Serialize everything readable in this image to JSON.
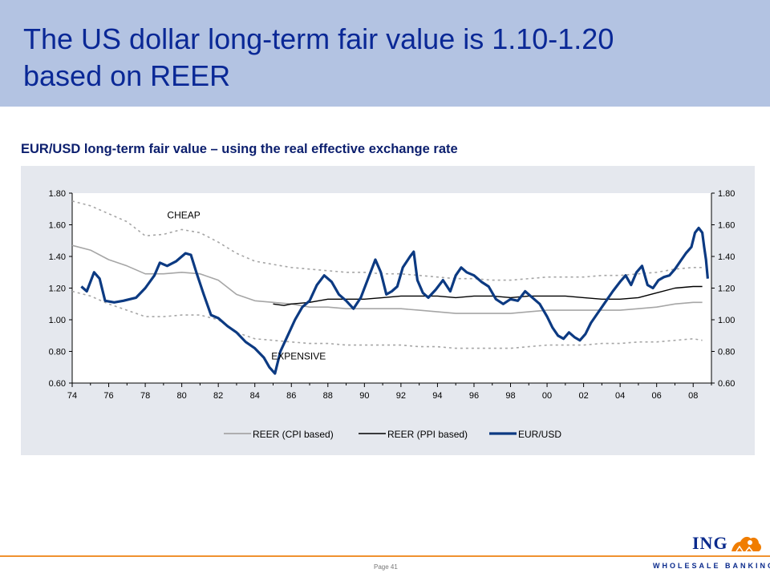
{
  "slide": {
    "title_line1": "The US dollar long-term fair value is 1.10-1.20",
    "title_line2": "based on REER",
    "subtitle": "EUR/USD long-term fair value – using the real effective exchange rate",
    "page_label": "Page 41"
  },
  "branding": {
    "logo_text": "ING",
    "division": "WHOLESALE BANKING"
  },
  "colors": {
    "header_bg": "#b3c3e2",
    "title": "#0a2896",
    "eurusd": "#0c3a82",
    "reer_cpi": "#a6a6a6",
    "reer_ppi": "#000000",
    "accent_line": "#f0922f"
  },
  "chart_data": {
    "type": "line",
    "ylim": [
      0.6,
      1.8
    ],
    "xlim": [
      1974,
      2009
    ],
    "y_ticks": [
      "1.80",
      "1.60",
      "1.40",
      "1.20",
      "1.00",
      "0.80",
      "0.60"
    ],
    "x_ticks": [
      "74",
      "76",
      "78",
      "80",
      "82",
      "84",
      "86",
      "88",
      "90",
      "92",
      "94",
      "96",
      "98",
      "00",
      "02",
      "04",
      "06",
      "08"
    ],
    "annotations": [
      {
        "text": "CHEAP",
        "x": 1979.2,
        "y": 1.66
      },
      {
        "text": "EXPENSIVE",
        "x": 1984.9,
        "y": 0.77
      }
    ],
    "legend": [
      "REER (CPI based)",
      "REER (PPI based)",
      "EUR/USD"
    ],
    "series": [
      {
        "name": "EUR/USD",
        "x": [
          1974.5,
          1974.8,
          1975.2,
          1975.5,
          1975.8,
          1976.3,
          1976.8,
          1977.5,
          1978.0,
          1978.5,
          1978.8,
          1979.2,
          1979.7,
          1980.2,
          1980.5,
          1980.8,
          1981.2,
          1981.6,
          1982.0,
          1982.5,
          1983.0,
          1983.5,
          1984.0,
          1984.5,
          1984.8,
          1985.1,
          1985.4,
          1985.8,
          1986.2,
          1986.6,
          1987.0,
          1987.4,
          1987.8,
          1988.2,
          1988.6,
          1989.0,
          1989.4,
          1989.8,
          1990.2,
          1990.6,
          1990.9,
          1991.2,
          1991.5,
          1991.8,
          1992.1,
          1992.5,
          1992.7,
          1992.9,
          1993.2,
          1993.5,
          1993.9,
          1994.3,
          1994.7,
          1995.0,
          1995.3,
          1995.6,
          1996.0,
          1996.4,
          1996.8,
          1997.2,
          1997.6,
          1998.0,
          1998.4,
          1998.8,
          1999.2,
          1999.6,
          2000.0,
          2000.3,
          2000.6,
          2000.9,
          2001.2,
          2001.5,
          2001.8,
          2002.1,
          2002.4,
          2002.7,
          2003.0,
          2003.3,
          2003.6,
          2004.0,
          2004.3,
          2004.6,
          2004.9,
          2005.2,
          2005.5,
          2005.8,
          2006.1,
          2006.4,
          2006.7,
          2007.0,
          2007.3,
          2007.6,
          2007.9,
          2008.1,
          2008.3,
          2008.5,
          2008.6,
          2008.7,
          2008.8
        ],
        "values": [
          1.21,
          1.18,
          1.3,
          1.26,
          1.12,
          1.11,
          1.12,
          1.14,
          1.2,
          1.28,
          1.36,
          1.34,
          1.37,
          1.42,
          1.41,
          1.3,
          1.16,
          1.03,
          1.01,
          0.96,
          0.92,
          0.86,
          0.82,
          0.76,
          0.7,
          0.66,
          0.8,
          0.9,
          1.0,
          1.08,
          1.12,
          1.22,
          1.28,
          1.24,
          1.16,
          1.12,
          1.07,
          1.14,
          1.26,
          1.38,
          1.3,
          1.16,
          1.18,
          1.21,
          1.33,
          1.4,
          1.43,
          1.25,
          1.17,
          1.14,
          1.19,
          1.25,
          1.18,
          1.28,
          1.33,
          1.3,
          1.28,
          1.24,
          1.21,
          1.13,
          1.1,
          1.13,
          1.12,
          1.18,
          1.14,
          1.1,
          1.02,
          0.95,
          0.9,
          0.88,
          0.92,
          0.89,
          0.87,
          0.91,
          0.98,
          1.03,
          1.08,
          1.13,
          1.18,
          1.24,
          1.28,
          1.22,
          1.3,
          1.34,
          1.22,
          1.2,
          1.25,
          1.27,
          1.28,
          1.32,
          1.37,
          1.42,
          1.46,
          1.55,
          1.58,
          1.55,
          1.46,
          1.38,
          1.26
        ]
      },
      {
        "name": "REER (CPI based)",
        "x": [
          1974,
          1975,
          1976,
          1977,
          1978,
          1979,
          1980,
          1981,
          1982,
          1983,
          1984,
          1985,
          1986,
          1987,
          1988,
          1989,
          1990,
          1991,
          1992,
          1993,
          1994,
          1995,
          1996,
          1997,
          1998,
          1999,
          2000,
          2001,
          2002,
          2003,
          2004,
          2005,
          2006,
          2007,
          2008,
          2008.5
        ],
        "values": [
          1.47,
          1.44,
          1.38,
          1.34,
          1.29,
          1.29,
          1.3,
          1.29,
          1.25,
          1.16,
          1.12,
          1.11,
          1.1,
          1.08,
          1.08,
          1.07,
          1.07,
          1.07,
          1.07,
          1.06,
          1.05,
          1.04,
          1.04,
          1.04,
          1.04,
          1.05,
          1.06,
          1.06,
          1.06,
          1.06,
          1.06,
          1.07,
          1.08,
          1.1,
          1.11,
          1.11
        ]
      },
      {
        "name": "REER (PPI based)",
        "x": [
          1985.0,
          1985.6,
          1986,
          1987,
          1988,
          1989,
          1990,
          1991,
          1992,
          1993,
          1994,
          1995,
          1996,
          1997,
          1998,
          1999,
          2000,
          2001,
          2002,
          2003,
          2004,
          2005,
          2006,
          2007,
          2008,
          2008.5
        ],
        "values": [
          1.1,
          1.09,
          1.1,
          1.11,
          1.13,
          1.13,
          1.13,
          1.14,
          1.15,
          1.15,
          1.15,
          1.14,
          1.15,
          1.15,
          1.14,
          1.15,
          1.15,
          1.15,
          1.14,
          1.13,
          1.13,
          1.14,
          1.17,
          1.2,
          1.21,
          1.21
        ]
      },
      {
        "name": "",
        "x": [
          1974,
          1975,
          1976,
          1977,
          1978,
          1979,
          1980,
          1981,
          1982,
          1983,
          1984,
          1985,
          1986,
          1987,
          1988,
          1989,
          1990,
          1991,
          1992,
          1993,
          1994,
          1995,
          1996,
          1997,
          1998,
          1999,
          2000,
          2001,
          2002,
          2003,
          2004,
          2005,
          2006,
          2007,
          2008,
          2008.5
        ],
        "values": [
          1.75,
          1.72,
          1.67,
          1.62,
          1.53,
          1.54,
          1.57,
          1.55,
          1.49,
          1.42,
          1.37,
          1.35,
          1.33,
          1.32,
          1.31,
          1.3,
          1.3,
          1.29,
          1.29,
          1.28,
          1.27,
          1.26,
          1.26,
          1.25,
          1.25,
          1.26,
          1.27,
          1.27,
          1.27,
          1.28,
          1.28,
          1.29,
          1.3,
          1.32,
          1.33,
          1.33
        ]
      },
      {
        "name": "",
        "x": [
          1974,
          1975,
          1976,
          1977,
          1978,
          1979,
          1980,
          1981,
          1982,
          1983,
          1984,
          1985,
          1986,
          1987,
          1988,
          1989,
          1990,
          1991,
          1992,
          1993,
          1994,
          1995,
          1996,
          1997,
          1998,
          1999,
          2000,
          2001,
          2002,
          2003,
          2004,
          2005,
          2006,
          2007,
          2008,
          2008.5
        ],
        "values": [
          1.18,
          1.15,
          1.1,
          1.06,
          1.02,
          1.02,
          1.03,
          1.03,
          1.0,
          0.92,
          0.88,
          0.87,
          0.86,
          0.85,
          0.85,
          0.84,
          0.84,
          0.84,
          0.84,
          0.83,
          0.83,
          0.82,
          0.82,
          0.82,
          0.82,
          0.83,
          0.84,
          0.84,
          0.84,
          0.85,
          0.85,
          0.86,
          0.86,
          0.87,
          0.88,
          0.87
        ]
      }
    ]
  }
}
